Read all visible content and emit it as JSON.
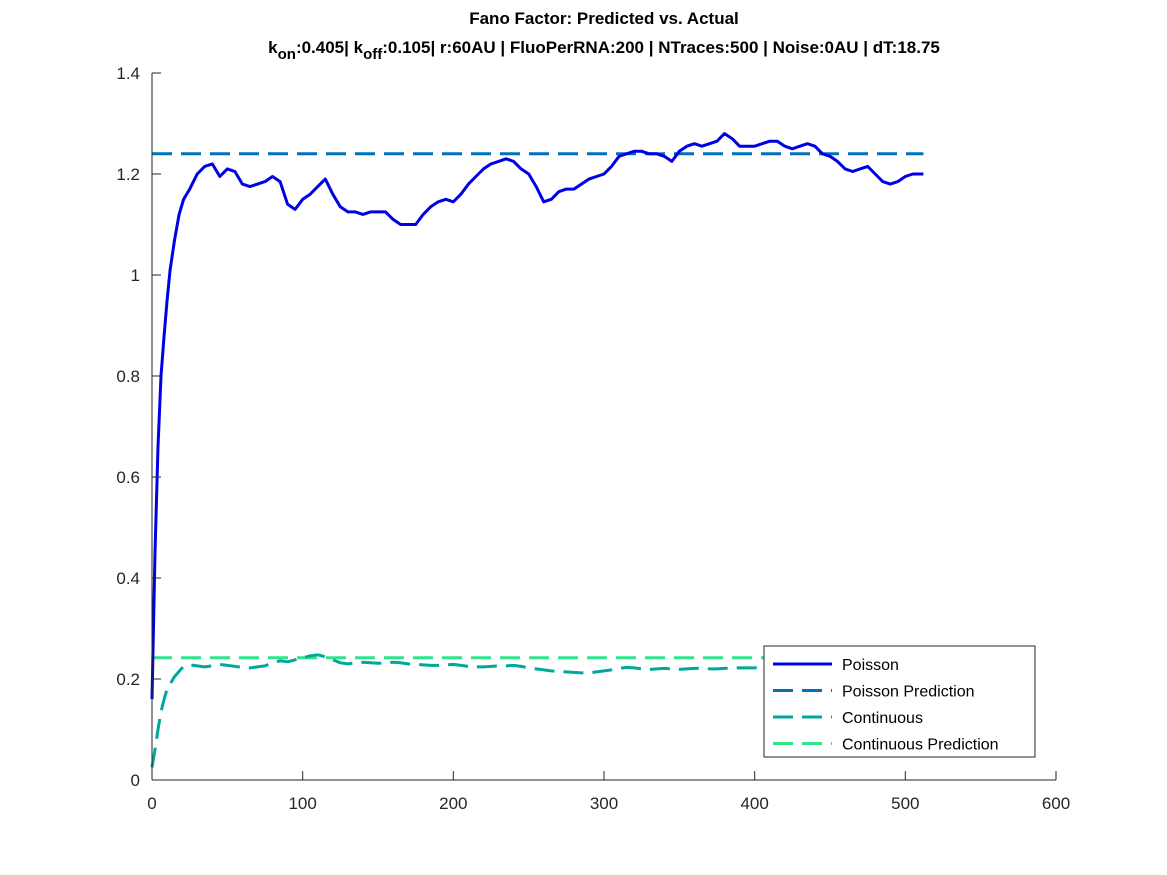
{
  "chart_data": {
    "type": "line",
    "title": "Fano Factor: Predicted vs. Actual",
    "subtitle_parts": {
      "k_base_1": "k",
      "k_sub_1": "on",
      "value_1": ":0.405| ",
      "k_base_2": "k",
      "k_sub_2": "off",
      "value_2": ":0.105| r:60AU | FluoPerRNA:200 | NTraces:500 | Noise:0AU | dT:18.75"
    },
    "xlabel": "",
    "ylabel": "",
    "xlim": [
      0,
      600
    ],
    "ylim": [
      0,
      1.4
    ],
    "xticks": [
      0,
      100,
      200,
      300,
      400,
      500,
      600
    ],
    "xtick_labels": [
      "0",
      "100",
      "200",
      "300",
      "400",
      "500",
      "600"
    ],
    "yticks": [
      0,
      0.2,
      0.4,
      0.6,
      0.8,
      1.0,
      1.2,
      1.4
    ],
    "ytick_labels": [
      "0",
      "0.2",
      "0.4",
      "0.6",
      "0.8",
      "1",
      "1.2",
      "1.4"
    ],
    "grid": false,
    "legend_position": "bottom-right",
    "series": [
      {
        "name": "Poisson",
        "style": "solid",
        "color": "#0000e6",
        "x": [
          0,
          2,
          4,
          6,
          8,
          10,
          12,
          15,
          18,
          21,
          25,
          30,
          35,
          40,
          45,
          50,
          55,
          60,
          65,
          70,
          75,
          80,
          85,
          90,
          95,
          100,
          105,
          110,
          115,
          120,
          125,
          130,
          135,
          140,
          145,
          150,
          155,
          160,
          165,
          170,
          175,
          180,
          185,
          190,
          195,
          200,
          205,
          210,
          215,
          220,
          225,
          230,
          235,
          240,
          245,
          250,
          255,
          260,
          265,
          270,
          275,
          280,
          285,
          290,
          295,
          300,
          305,
          310,
          315,
          320,
          325,
          330,
          335,
          340,
          345,
          350,
          355,
          360,
          365,
          370,
          375,
          380,
          385,
          390,
          395,
          400,
          405,
          410,
          415,
          420,
          425,
          430,
          435,
          440,
          445,
          450,
          455,
          460,
          465,
          470,
          475,
          480,
          485,
          490,
          495,
          500,
          505,
          512
        ],
        "values": [
          0.16,
          0.45,
          0.66,
          0.8,
          0.88,
          0.95,
          1.01,
          1.07,
          1.12,
          1.15,
          1.17,
          1.2,
          1.215,
          1.22,
          1.195,
          1.21,
          1.205,
          1.18,
          1.175,
          1.18,
          1.185,
          1.195,
          1.185,
          1.14,
          1.13,
          1.15,
          1.16,
          1.175,
          1.19,
          1.16,
          1.135,
          1.125,
          1.125,
          1.12,
          1.125,
          1.125,
          1.125,
          1.11,
          1.1,
          1.1,
          1.1,
          1.12,
          1.135,
          1.145,
          1.15,
          1.145,
          1.16,
          1.18,
          1.195,
          1.21,
          1.22,
          1.225,
          1.23,
          1.225,
          1.21,
          1.2,
          1.175,
          1.145,
          1.15,
          1.165,
          1.17,
          1.17,
          1.18,
          1.19,
          1.195,
          1.2,
          1.215,
          1.235,
          1.24,
          1.245,
          1.245,
          1.24,
          1.24,
          1.235,
          1.225,
          1.245,
          1.255,
          1.26,
          1.255,
          1.26,
          1.265,
          1.28,
          1.27,
          1.255,
          1.255,
          1.255,
          1.26,
          1.265,
          1.265,
          1.255,
          1.25,
          1.255,
          1.26,
          1.255,
          1.24,
          1.235,
          1.225,
          1.21,
          1.205,
          1.21,
          1.215,
          1.2,
          1.185,
          1.18,
          1.185,
          1.195,
          1.2,
          1.2
        ]
      },
      {
        "name": "Poisson Prediction",
        "style": "dashed",
        "color": "#0072bd",
        "x": [
          0,
          512
        ],
        "values": [
          1.24,
          1.24
        ]
      },
      {
        "name": "Continuous",
        "style": "dashed",
        "color": "#00a89c",
        "x": [
          0,
          2,
          4,
          6,
          8,
          10,
          12,
          15,
          18,
          21,
          25,
          30,
          35,
          40,
          45,
          50,
          55,
          60,
          65,
          70,
          75,
          80,
          85,
          90,
          95,
          100,
          105,
          110,
          115,
          120,
          125,
          130,
          135,
          140,
          145,
          150,
          155,
          160,
          165,
          170,
          175,
          180,
          185,
          190,
          195,
          200,
          205,
          210,
          215,
          220,
          225,
          230,
          235,
          240,
          245,
          250,
          255,
          260,
          265,
          270,
          275,
          280,
          285,
          290,
          295,
          300,
          305,
          310,
          315,
          320,
          325,
          330,
          335,
          340,
          345,
          350,
          355,
          360,
          365,
          370,
          375,
          380,
          385,
          390,
          395,
          400,
          405,
          410,
          415,
          420,
          425,
          430,
          435,
          440,
          445,
          450,
          455,
          460,
          465,
          470,
          475,
          480,
          485,
          490,
          495,
          500,
          505,
          512
        ],
        "values": [
          0.025,
          0.06,
          0.1,
          0.135,
          0.16,
          0.18,
          0.19,
          0.205,
          0.215,
          0.225,
          0.228,
          0.226,
          0.224,
          0.226,
          0.229,
          0.227,
          0.225,
          0.223,
          0.222,
          0.224,
          0.226,
          0.232,
          0.236,
          0.234,
          0.238,
          0.242,
          0.246,
          0.248,
          0.244,
          0.238,
          0.232,
          0.23,
          0.232,
          0.233,
          0.232,
          0.231,
          0.232,
          0.233,
          0.232,
          0.23,
          0.229,
          0.228,
          0.227,
          0.227,
          0.228,
          0.229,
          0.227,
          0.225,
          0.224,
          0.224,
          0.225,
          0.226,
          0.226,
          0.227,
          0.225,
          0.222,
          0.22,
          0.218,
          0.216,
          0.215,
          0.214,
          0.213,
          0.212,
          0.212,
          0.214,
          0.216,
          0.218,
          0.221,
          0.223,
          0.222,
          0.22,
          0.219,
          0.22,
          0.221,
          0.22,
          0.219,
          0.22,
          0.221,
          0.221,
          0.22,
          0.22,
          0.221,
          0.222,
          0.222,
          0.222,
          0.222,
          0.224,
          0.226,
          0.228,
          0.23,
          0.232,
          0.233,
          0.233,
          0.232,
          0.231,
          0.232,
          0.233,
          0.234,
          0.234,
          0.232,
          0.231,
          0.232,
          0.233,
          0.234,
          0.234,
          0.235,
          0.236,
          0.236
        ]
      },
      {
        "name": "Continuous Prediction",
        "style": "dashed",
        "color": "#2ee58c",
        "x": [
          0,
          512
        ],
        "values": [
          0.242,
          0.242
        ]
      }
    ]
  }
}
